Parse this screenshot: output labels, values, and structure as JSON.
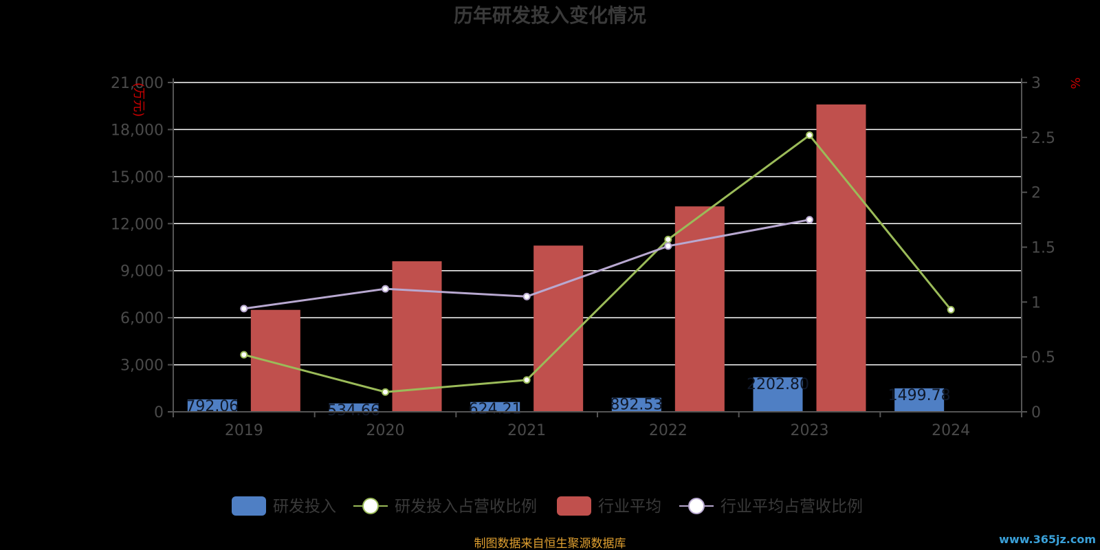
{
  "colors": {
    "rd_bar": "#4f7fc4",
    "avg_bar": "#c0504d",
    "rd_line": "#9bbb59",
    "avg_line": "#b8a8d0",
    "grid": "#ffffff",
    "axis": "#555555"
  },
  "chart_data": {
    "type": "bar",
    "title": "历年研发投入变化情况",
    "categories": [
      "2019",
      "2020",
      "2021",
      "2022",
      "2023",
      "2024"
    ],
    "y_left": {
      "unit": "(万元)",
      "min": 0,
      "max": 21000,
      "ticks": [
        "0",
        "3,000",
        "6,000",
        "9,000",
        "12,000",
        "15,000",
        "18,000",
        "21,000"
      ]
    },
    "y_right": {
      "unit": "%",
      "min": 0,
      "max": 3,
      "ticks": [
        "0",
        "0.5",
        "1",
        "1.5",
        "2",
        "2.5",
        "3"
      ]
    },
    "grid": true,
    "legend_position": "bottom",
    "series": [
      {
        "name": "研发投入",
        "kind": "bar",
        "axis": "left",
        "values": [
          792.06,
          534.66,
          624.21,
          892.53,
          2202.8,
          1499.78
        ],
        "labels": [
          "792.06",
          "534.66",
          "624.21",
          "892.53",
          "2202.80",
          "1499.78"
        ]
      },
      {
        "name": "研发投入占营收比例",
        "kind": "line",
        "axis": "right",
        "values": [
          0.52,
          0.18,
          0.29,
          1.57,
          2.52,
          0.93
        ]
      },
      {
        "name": "行业平均",
        "kind": "bar",
        "axis": "left",
        "values": [
          6500,
          9600,
          10600,
          13100,
          19600,
          null
        ]
      },
      {
        "name": "行业平均占营收比例",
        "kind": "line",
        "axis": "right",
        "values": [
          0.94,
          1.12,
          1.05,
          1.51,
          1.75,
          null
        ]
      }
    ]
  },
  "footer": {
    "source": "制图数据来自恒生聚源数据库",
    "watermark": "www.365jz.com"
  }
}
